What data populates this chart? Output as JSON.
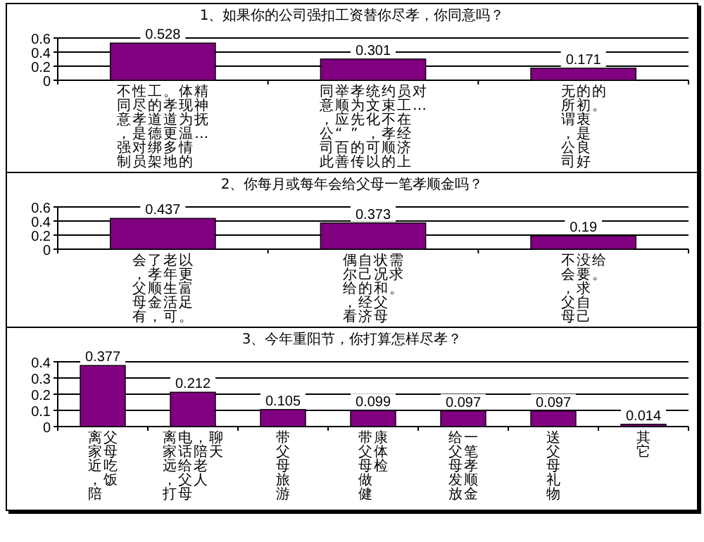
{
  "chart_data": [
    {
      "type": "bar",
      "title": "1、如果你的公司强扣工资替你尽孝，你同意吗？",
      "categories": [
        "不同意，强制性尽孝是对员工的道德绑架。孝道更多地体现为温情的精神抚…",
        "同意，公司此举顺应“百善孝为先”的传统文化，可以约束不孝顺的员工在经济上对…",
        "无所谓，公司的初衷是良好的。"
      ],
      "values": [
        0.528,
        0.301,
        0.171
      ],
      "color": "#800080",
      "ylim": [
        0,
        0.6
      ],
      "yticks": [
        0,
        0.2,
        0.4,
        0.6
      ],
      "grid": "y",
      "data_labels": true
    },
    {
      "type": "bar",
      "title": "2、你每月或每年会给父母一笔孝顺金吗？",
      "categories": [
        "会，父母有了孝顺金，老年生活可以更富足。",
        "偶尔给，看自己的经济状况和父母需求。",
        "不会，父母没要求自己给。"
      ],
      "values": [
        0.437,
        0.373,
        0.19
      ],
      "color": "#800080",
      "ylim": [
        0,
        0.6
      ],
      "yticks": [
        0,
        0.2,
        0.4,
        0.6
      ],
      "grid": "y",
      "data_labels": true
    },
    {
      "type": "bar",
      "title": "3、今年重阳节，你打算怎样尽孝？",
      "categories": [
        "离家近，陪父母吃饭",
        "离家远，打电话给父母，陪老人聊天",
        "带父母旅游",
        "带父母做健康体检",
        "给父母发放一笔孝顺金",
        "送父母礼物",
        "其它"
      ],
      "values": [
        0.377,
        0.212,
        0.105,
        0.099,
        0.097,
        0.097,
        0.014
      ],
      "color": "#800080",
      "ylim": [
        0,
        0.4
      ],
      "yticks": [
        0,
        0.1,
        0.2,
        0.3,
        0.4
      ],
      "grid": "y",
      "data_labels": true
    }
  ]
}
